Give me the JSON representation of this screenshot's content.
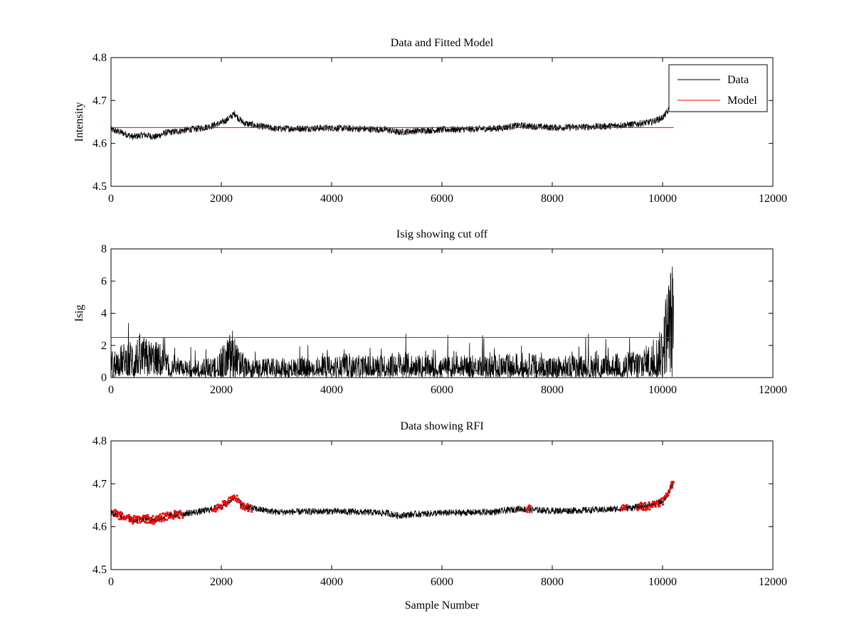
{
  "chart_data": [
    {
      "type": "line",
      "title": "Data and Fitted Model",
      "xlabel": "",
      "ylabel": "Intensity",
      "xlim": [
        0,
        12000
      ],
      "ylim": [
        4.5,
        4.8
      ],
      "xticks": [
        0,
        2000,
        4000,
        6000,
        8000,
        10000,
        12000
      ],
      "yticks": [
        4.5,
        4.6,
        4.7,
        4.8
      ],
      "grid": false,
      "legend": {
        "placement": "top-right",
        "entries": [
          "Data",
          "Model"
        ]
      },
      "series": [
        {
          "name": "Data",
          "color": "#000000",
          "x": [
            0,
            200,
            400,
            600,
            800,
            1000,
            1200,
            1400,
            1600,
            1800,
            2000,
            2100,
            2200,
            2250,
            2300,
            2400,
            2600,
            2800,
            3000,
            3500,
            4000,
            4500,
            5000,
            5200,
            5500,
            6000,
            6500,
            7000,
            7400,
            7600,
            8000,
            8500,
            9000,
            9500,
            9800,
            10000,
            10100,
            10150
          ],
          "y": [
            4.632,
            4.625,
            4.615,
            4.62,
            4.615,
            4.625,
            4.628,
            4.632,
            4.635,
            4.64,
            4.648,
            4.655,
            4.665,
            4.67,
            4.66,
            4.648,
            4.642,
            4.638,
            4.634,
            4.635,
            4.636,
            4.634,
            4.632,
            4.626,
            4.629,
            4.632,
            4.633,
            4.635,
            4.642,
            4.64,
            4.637,
            4.638,
            4.64,
            4.645,
            4.65,
            4.66,
            4.675,
            4.695
          ],
          "noise": 0.008
        },
        {
          "name": "Model",
          "color": "#ff0000",
          "x": [
            0,
            10200
          ],
          "y": [
            4.637,
            4.637
          ]
        }
      ]
    },
    {
      "type": "line",
      "title": "Isig showing cut off",
      "xlabel": "",
      "ylabel": "Isig",
      "xlim": [
        0,
        12000
      ],
      "ylim": [
        0,
        8
      ],
      "xticks": [
        0,
        2000,
        4000,
        6000,
        8000,
        10000,
        12000
      ],
      "yticks": [
        0,
        2,
        4,
        6,
        8
      ],
      "grid": false,
      "series": [
        {
          "color": "#000000",
          "x": [
            0,
            300,
            500,
            700,
            900,
            1100,
            1500,
            1900,
            2100,
            2200,
            2300,
            2500,
            3000,
            4000,
            5000,
            5200,
            5500,
            6000,
            7000,
            7500,
            8000,
            9000,
            9500,
            9800,
            9950,
            10000,
            10050,
            10100,
            10150,
            10200
          ],
          "y": [
            1.0,
            1.5,
            1.8,
            1.6,
            1.4,
            0.5,
            0.5,
            0.7,
            1.6,
            2.2,
            1.2,
            0.5,
            0.6,
            0.7,
            0.8,
            1.0,
            0.8,
            0.7,
            0.8,
            0.9,
            0.7,
            0.8,
            1.0,
            1.4,
            2.0,
            2.8,
            3.8,
            4.8,
            5.4,
            5.8
          ],
          "noise": 1.0
        },
        {
          "name": "cut off",
          "color": "#ff0000",
          "x": [
            0,
            10200
          ],
          "y": [
            2.5,
            2.5
          ]
        }
      ]
    },
    {
      "type": "line",
      "title": "Data showing RFI",
      "xlabel": "Sample Number",
      "ylabel": "",
      "xlim": [
        0,
        12000
      ],
      "ylim": [
        4.5,
        4.8
      ],
      "xticks": [
        0,
        2000,
        4000,
        6000,
        8000,
        10000,
        12000
      ],
      "yticks": [
        4.5,
        4.6,
        4.7,
        4.8
      ],
      "grid": false,
      "series": [
        {
          "color": "#000000",
          "x": [
            0,
            200,
            400,
            600,
            800,
            1000,
            1200,
            1400,
            1600,
            1800,
            2000,
            2100,
            2200,
            2250,
            2300,
            2400,
            2600,
            2800,
            3000,
            3500,
            4000,
            4500,
            5000,
            5200,
            5500,
            6000,
            6500,
            7000,
            7400,
            7600,
            8000,
            8500,
            9000,
            9500,
            9800,
            10000,
            10100,
            10150,
            10200
          ],
          "y": [
            4.632,
            4.625,
            4.615,
            4.62,
            4.615,
            4.625,
            4.628,
            4.632,
            4.635,
            4.64,
            4.648,
            4.655,
            4.665,
            4.67,
            4.66,
            4.648,
            4.642,
            4.638,
            4.634,
            4.635,
            4.636,
            4.634,
            4.632,
            4.626,
            4.629,
            4.632,
            4.633,
            4.635,
            4.642,
            4.64,
            4.637,
            4.638,
            4.64,
            4.645,
            4.65,
            4.66,
            4.675,
            4.695,
            4.702
          ],
          "noise": 0.008
        },
        {
          "name": "RFI",
          "color": "#ff0000",
          "marker": "dot",
          "segments": [
            [
              50,
              1300
            ],
            [
              1850,
              2550
            ],
            [
              7530,
              7600
            ],
            [
              9250,
              9350
            ],
            [
              9550,
              10200
            ]
          ]
        }
      ]
    }
  ]
}
